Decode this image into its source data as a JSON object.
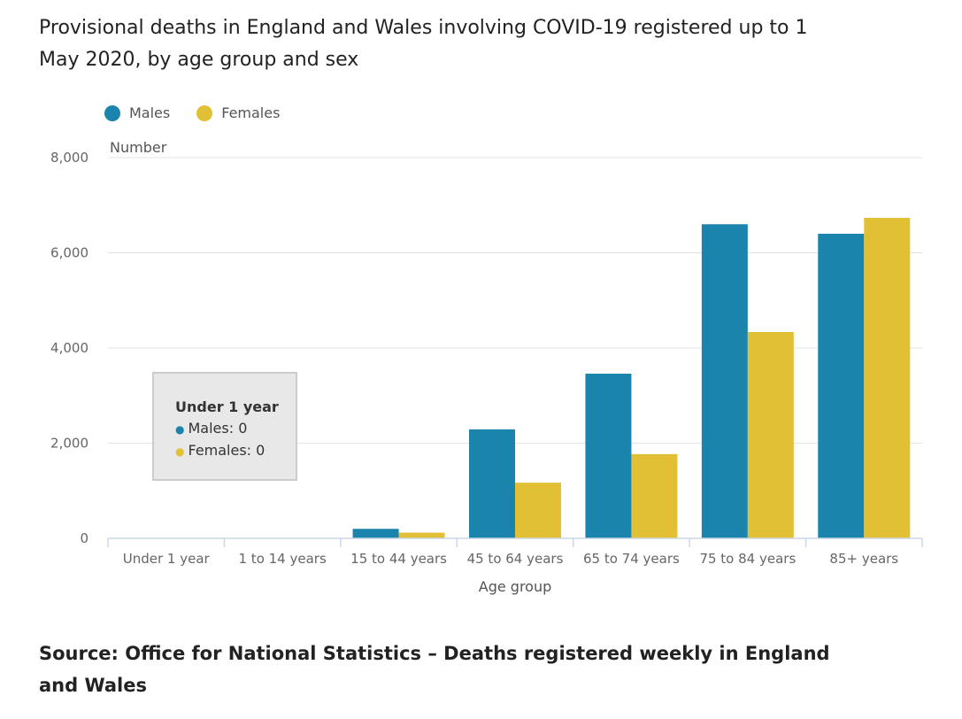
{
  "title": "Provisional deaths in England and Wales involving COVID-19 registered up to 1 May 2020, by age group and sex",
  "source": "Source: Office for National Statistics – Deaths registered weekly in England and Wales",
  "colors": {
    "males": "#1a84ad",
    "females": "#e2c035"
  },
  "chart_data": {
    "type": "bar",
    "title": "Provisional deaths in England and Wales involving COVID-19 registered up to 1 May 2020, by age group and sex",
    "xlabel": "Age group",
    "ylabel": "Number",
    "ylim": [
      0,
      8000
    ],
    "yticks": [
      0,
      2000,
      4000,
      6000,
      8000
    ],
    "ytick_labels": [
      "0",
      "2,000",
      "4,000",
      "6,000",
      "8,000"
    ],
    "grid": true,
    "legend": "top-left",
    "categories": [
      "Under 1 year",
      "1 to 14 years",
      "15 to 44 years",
      "45 to 64 years",
      "65 to 74 years",
      "75 to 84 years",
      "85+ years"
    ],
    "series": [
      {
        "name": "Males",
        "values": [
          0,
          3,
          200,
          2290,
          3460,
          6600,
          6400
        ]
      },
      {
        "name": "Females",
        "values": [
          0,
          2,
          120,
          1170,
          1770,
          4335,
          6735
        ]
      }
    ]
  },
  "tooltip": {
    "title": "Under 1 year",
    "males": "Males: 0",
    "females": "Females: 0"
  }
}
